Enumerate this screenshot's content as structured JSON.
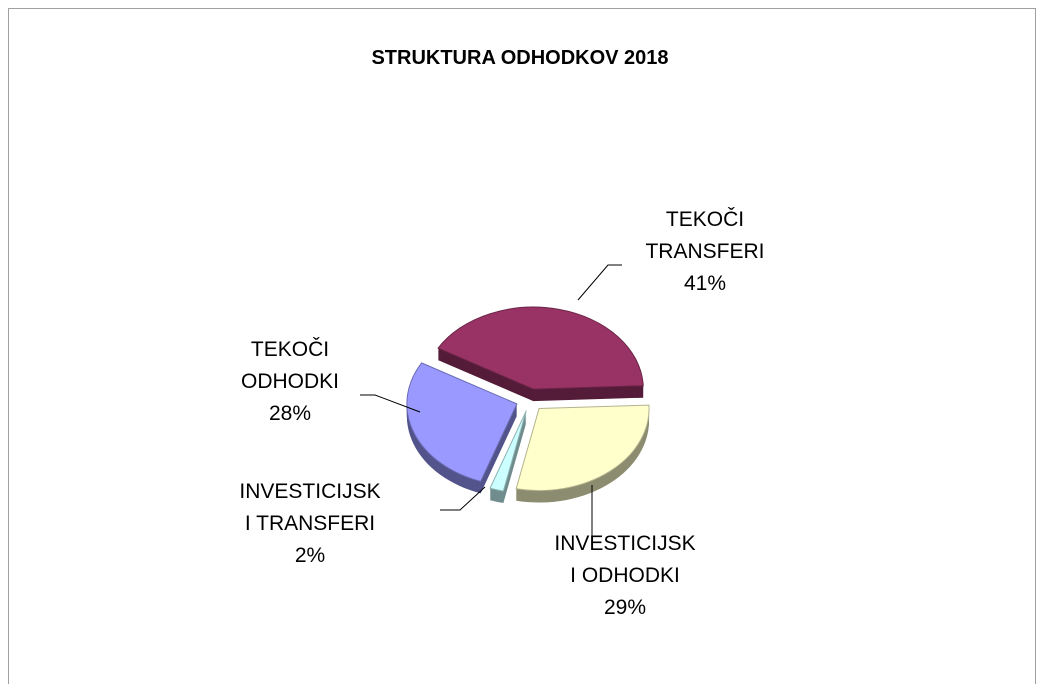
{
  "chart_data": {
    "type": "pie",
    "title": "STRUKTURA ODHODKOV 2018",
    "categories": [
      "TEKOČI TRANSFERI",
      "INVESTICIJSKI ODHODKI",
      "INVESTICIJSKI TRANSFERI",
      "TEKOČI ODHODKI"
    ],
    "values": [
      41,
      29,
      2,
      28
    ],
    "value_labels": [
      "41%",
      "29%",
      "2%",
      "28%"
    ],
    "colors": [
      "#993366",
      "#ffffcc",
      "#ccffff",
      "#9999ff"
    ]
  }
}
